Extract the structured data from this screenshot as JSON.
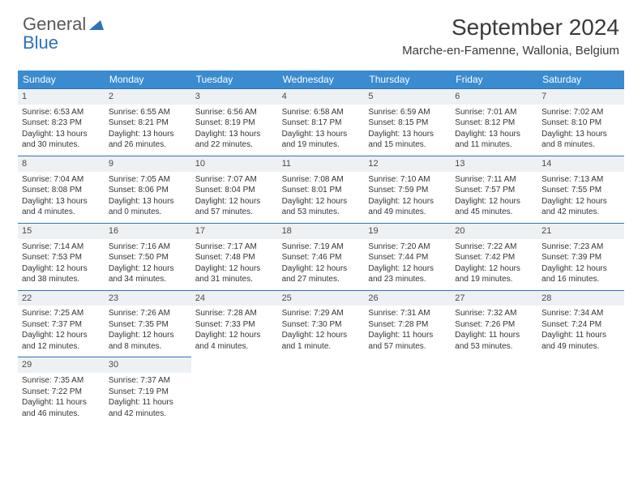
{
  "logo": {
    "line1": "General",
    "line2": "Blue"
  },
  "title": "September 2024",
  "location": "Marche-en-Famenne, Wallonia, Belgium",
  "header_bg_color": "#3a8bd0",
  "header_text_color": "#ffffff",
  "daynum_bg_color": "#eef1f4",
  "border_color": "#2f72b8",
  "weekdays": [
    "Sunday",
    "Monday",
    "Tuesday",
    "Wednesday",
    "Thursday",
    "Friday",
    "Saturday"
  ],
  "weeks": [
    [
      {
        "n": "1",
        "sr": "Sunrise: 6:53 AM",
        "ss": "Sunset: 8:23 PM",
        "dl": "Daylight: 13 hours and 30 minutes."
      },
      {
        "n": "2",
        "sr": "Sunrise: 6:55 AM",
        "ss": "Sunset: 8:21 PM",
        "dl": "Daylight: 13 hours and 26 minutes."
      },
      {
        "n": "3",
        "sr": "Sunrise: 6:56 AM",
        "ss": "Sunset: 8:19 PM",
        "dl": "Daylight: 13 hours and 22 minutes."
      },
      {
        "n": "4",
        "sr": "Sunrise: 6:58 AM",
        "ss": "Sunset: 8:17 PM",
        "dl": "Daylight: 13 hours and 19 minutes."
      },
      {
        "n": "5",
        "sr": "Sunrise: 6:59 AM",
        "ss": "Sunset: 8:15 PM",
        "dl": "Daylight: 13 hours and 15 minutes."
      },
      {
        "n": "6",
        "sr": "Sunrise: 7:01 AM",
        "ss": "Sunset: 8:12 PM",
        "dl": "Daylight: 13 hours and 11 minutes."
      },
      {
        "n": "7",
        "sr": "Sunrise: 7:02 AM",
        "ss": "Sunset: 8:10 PM",
        "dl": "Daylight: 13 hours and 8 minutes."
      }
    ],
    [
      {
        "n": "8",
        "sr": "Sunrise: 7:04 AM",
        "ss": "Sunset: 8:08 PM",
        "dl": "Daylight: 13 hours and 4 minutes."
      },
      {
        "n": "9",
        "sr": "Sunrise: 7:05 AM",
        "ss": "Sunset: 8:06 PM",
        "dl": "Daylight: 13 hours and 0 minutes."
      },
      {
        "n": "10",
        "sr": "Sunrise: 7:07 AM",
        "ss": "Sunset: 8:04 PM",
        "dl": "Daylight: 12 hours and 57 minutes."
      },
      {
        "n": "11",
        "sr": "Sunrise: 7:08 AM",
        "ss": "Sunset: 8:01 PM",
        "dl": "Daylight: 12 hours and 53 minutes."
      },
      {
        "n": "12",
        "sr": "Sunrise: 7:10 AM",
        "ss": "Sunset: 7:59 PM",
        "dl": "Daylight: 12 hours and 49 minutes."
      },
      {
        "n": "13",
        "sr": "Sunrise: 7:11 AM",
        "ss": "Sunset: 7:57 PM",
        "dl": "Daylight: 12 hours and 45 minutes."
      },
      {
        "n": "14",
        "sr": "Sunrise: 7:13 AM",
        "ss": "Sunset: 7:55 PM",
        "dl": "Daylight: 12 hours and 42 minutes."
      }
    ],
    [
      {
        "n": "15",
        "sr": "Sunrise: 7:14 AM",
        "ss": "Sunset: 7:53 PM",
        "dl": "Daylight: 12 hours and 38 minutes."
      },
      {
        "n": "16",
        "sr": "Sunrise: 7:16 AM",
        "ss": "Sunset: 7:50 PM",
        "dl": "Daylight: 12 hours and 34 minutes."
      },
      {
        "n": "17",
        "sr": "Sunrise: 7:17 AM",
        "ss": "Sunset: 7:48 PM",
        "dl": "Daylight: 12 hours and 31 minutes."
      },
      {
        "n": "18",
        "sr": "Sunrise: 7:19 AM",
        "ss": "Sunset: 7:46 PM",
        "dl": "Daylight: 12 hours and 27 minutes."
      },
      {
        "n": "19",
        "sr": "Sunrise: 7:20 AM",
        "ss": "Sunset: 7:44 PM",
        "dl": "Daylight: 12 hours and 23 minutes."
      },
      {
        "n": "20",
        "sr": "Sunrise: 7:22 AM",
        "ss": "Sunset: 7:42 PM",
        "dl": "Daylight: 12 hours and 19 minutes."
      },
      {
        "n": "21",
        "sr": "Sunrise: 7:23 AM",
        "ss": "Sunset: 7:39 PM",
        "dl": "Daylight: 12 hours and 16 minutes."
      }
    ],
    [
      {
        "n": "22",
        "sr": "Sunrise: 7:25 AM",
        "ss": "Sunset: 7:37 PM",
        "dl": "Daylight: 12 hours and 12 minutes."
      },
      {
        "n": "23",
        "sr": "Sunrise: 7:26 AM",
        "ss": "Sunset: 7:35 PM",
        "dl": "Daylight: 12 hours and 8 minutes."
      },
      {
        "n": "24",
        "sr": "Sunrise: 7:28 AM",
        "ss": "Sunset: 7:33 PM",
        "dl": "Daylight: 12 hours and 4 minutes."
      },
      {
        "n": "25",
        "sr": "Sunrise: 7:29 AM",
        "ss": "Sunset: 7:30 PM",
        "dl": "Daylight: 12 hours and 1 minute."
      },
      {
        "n": "26",
        "sr": "Sunrise: 7:31 AM",
        "ss": "Sunset: 7:28 PM",
        "dl": "Daylight: 11 hours and 57 minutes."
      },
      {
        "n": "27",
        "sr": "Sunrise: 7:32 AM",
        "ss": "Sunset: 7:26 PM",
        "dl": "Daylight: 11 hours and 53 minutes."
      },
      {
        "n": "28",
        "sr": "Sunrise: 7:34 AM",
        "ss": "Sunset: 7:24 PM",
        "dl": "Daylight: 11 hours and 49 minutes."
      }
    ],
    [
      {
        "n": "29",
        "sr": "Sunrise: 7:35 AM",
        "ss": "Sunset: 7:22 PM",
        "dl": "Daylight: 11 hours and 46 minutes."
      },
      {
        "n": "30",
        "sr": "Sunrise: 7:37 AM",
        "ss": "Sunset: 7:19 PM",
        "dl": "Daylight: 11 hours and 42 minutes."
      },
      null,
      null,
      null,
      null,
      null
    ]
  ]
}
